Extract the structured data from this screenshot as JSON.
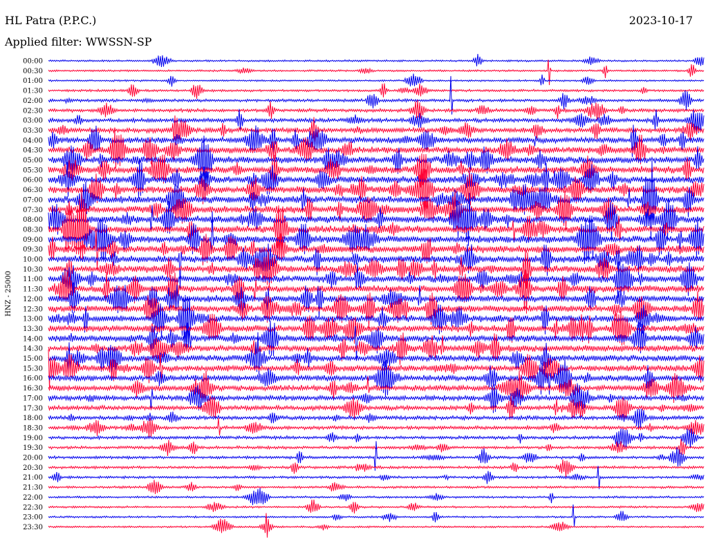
{
  "header": {
    "station": "HL Patra (P.P.C.)",
    "filter": "Applied filter: WWSSN-SP",
    "date": "2023-10-17"
  },
  "chart_data": {
    "type": "line",
    "title": "HL Patra (P.P.C.)",
    "subtitle": "Applied filter: WWSSN-SP",
    "date": "2023-10-17",
    "ylabel": "HNZ - 25000",
    "xlabel": "",
    "grid": false,
    "colors": [
      "#0000ee",
      "#ff0033"
    ],
    "rows": [
      {
        "label": "00:00",
        "activity": 0.1
      },
      {
        "label": "00:30",
        "activity": 0.1
      },
      {
        "label": "01:00",
        "activity": 0.08
      },
      {
        "label": "01:30",
        "activity": 0.18
      },
      {
        "label": "02:00",
        "activity": 0.28
      },
      {
        "label": "02:30",
        "activity": 0.35
      },
      {
        "label": "03:00",
        "activity": 0.45
      },
      {
        "label": "03:30",
        "activity": 0.6
      },
      {
        "label": "04:00",
        "activity": 0.72
      },
      {
        "label": "04:30",
        "activity": 0.8
      },
      {
        "label": "05:00",
        "activity": 0.85
      },
      {
        "label": "05:30",
        "activity": 0.88
      },
      {
        "label": "06:00",
        "activity": 0.9
      },
      {
        "label": "06:30",
        "activity": 0.92
      },
      {
        "label": "07:00",
        "activity": 0.93
      },
      {
        "label": "07:30",
        "activity": 0.95
      },
      {
        "label": "08:00",
        "activity": 0.95
      },
      {
        "label": "08:30",
        "activity": 0.95
      },
      {
        "label": "09:00",
        "activity": 0.94
      },
      {
        "label": "09:30",
        "activity": 0.93
      },
      {
        "label": "10:00",
        "activity": 0.92
      },
      {
        "label": "10:30",
        "activity": 0.92
      },
      {
        "label": "11:00",
        "activity": 0.9
      },
      {
        "label": "11:30",
        "activity": 0.9
      },
      {
        "label": "12:00",
        "activity": 0.88
      },
      {
        "label": "12:30",
        "activity": 0.88
      },
      {
        "label": "13:00",
        "activity": 0.86
      },
      {
        "label": "13:30",
        "activity": 0.85
      },
      {
        "label": "14:00",
        "activity": 0.85
      },
      {
        "label": "14:30",
        "activity": 0.82
      },
      {
        "label": "15:00",
        "activity": 0.8
      },
      {
        "label": "15:30",
        "activity": 0.78
      },
      {
        "label": "16:00",
        "activity": 0.75
      },
      {
        "label": "16:30",
        "activity": 0.7
      },
      {
        "label": "17:00",
        "activity": 0.62
      },
      {
        "label": "17:30",
        "activity": 0.55
      },
      {
        "label": "18:00",
        "activity": 0.45
      },
      {
        "label": "18:30",
        "activity": 0.38
      },
      {
        "label": "19:00",
        "activity": 0.32
      },
      {
        "label": "19:30",
        "activity": 0.28
      },
      {
        "label": "20:00",
        "activity": 0.25
      },
      {
        "label": "20:30",
        "activity": 0.24
      },
      {
        "label": "21:00",
        "activity": 0.2
      },
      {
        "label": "21:30",
        "activity": 0.18
      },
      {
        "label": "22:00",
        "activity": 0.14
      },
      {
        "label": "22:30",
        "activity": 0.12
      },
      {
        "label": "23:00",
        "activity": 0.1
      },
      {
        "label": "23:30",
        "activity": 0.1
      }
    ]
  }
}
